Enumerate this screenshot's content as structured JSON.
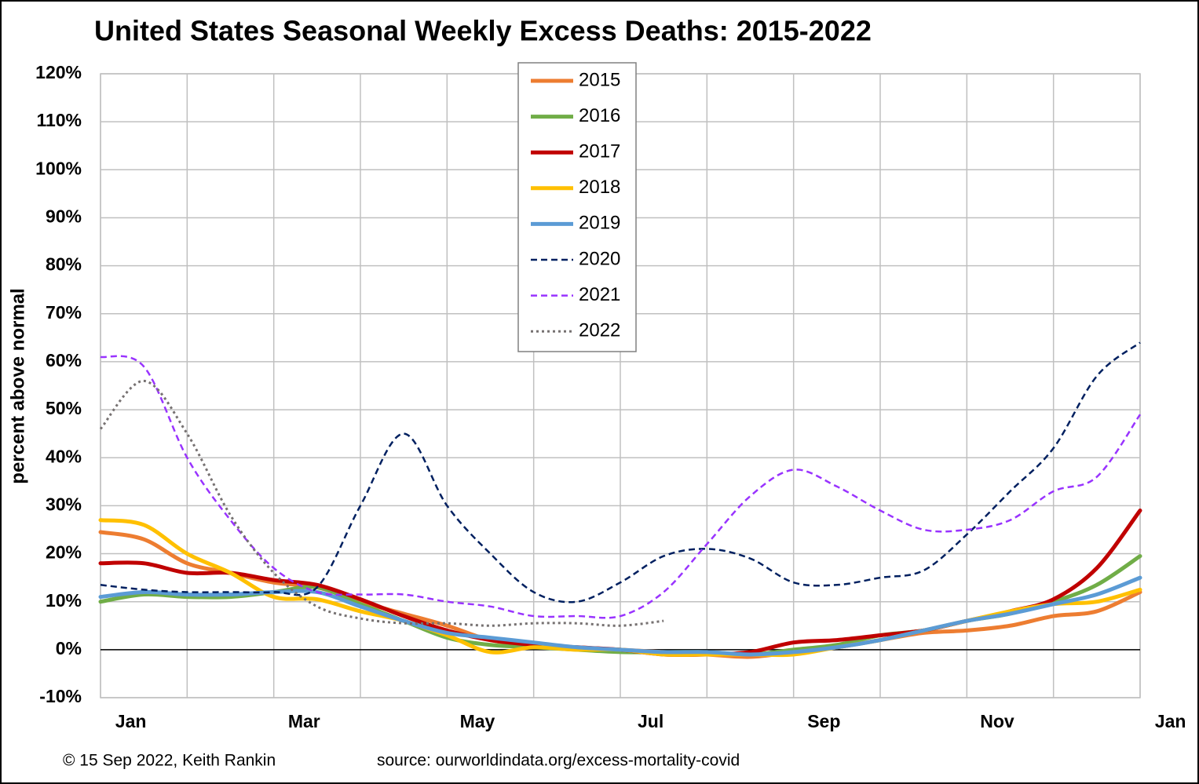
{
  "chart_data": {
    "type": "line",
    "title": "United States Seasonal Weekly Excess Deaths: 2015-2022",
    "y_label": "percent above normal",
    "credit": "© 15 Sep 2022, Keith Rankin",
    "source": "source: ourworldindata.org/excess-mortality-covid",
    "x": [
      0,
      0.5,
      1,
      1.5,
      2,
      2.5,
      3,
      3.5,
      4,
      4.5,
      5,
      5.5,
      6,
      6.5,
      7,
      7.5,
      8,
      8.5,
      9,
      9.5,
      10,
      10.5,
      11,
      11.5,
      12
    ],
    "xlim": [
      0,
      12
    ],
    "xticks": [
      {
        "value": 0,
        "label": "Jan"
      },
      {
        "value": 1,
        "label": null
      },
      {
        "value": 2,
        "label": "Mar"
      },
      {
        "value": 3,
        "label": null
      },
      {
        "value": 4,
        "label": "May"
      },
      {
        "value": 5,
        "label": null
      },
      {
        "value": 6,
        "label": "Jul"
      },
      {
        "value": 7,
        "label": null
      },
      {
        "value": 8,
        "label": "Sep"
      },
      {
        "value": 9,
        "label": null
      },
      {
        "value": 10,
        "label": "Nov"
      },
      {
        "value": 11,
        "label": null
      },
      {
        "value": 12,
        "label": "Jan"
      }
    ],
    "ylim": [
      -10,
      120
    ],
    "yticks": [
      {
        "value": -10,
        "label": "-10%"
      },
      {
        "value": 0,
        "label": "0%"
      },
      {
        "value": 10,
        "label": "10%"
      },
      {
        "value": 20,
        "label": "20%"
      },
      {
        "value": 30,
        "label": "30%"
      },
      {
        "value": 40,
        "label": "40%"
      },
      {
        "value": 50,
        "label": "50%"
      },
      {
        "value": 60,
        "label": "60%"
      },
      {
        "value": 70,
        "label": "70%"
      },
      {
        "value": 80,
        "label": "80%"
      },
      {
        "value": 90,
        "label": "90%"
      },
      {
        "value": 100,
        "label": "100%"
      },
      {
        "value": 110,
        "label": "110%"
      },
      {
        "value": 120,
        "label": "120%"
      }
    ],
    "grid": true,
    "legend": "top",
    "series": [
      {
        "name": "2015",
        "color": "#ed7d31",
        "style": "solid",
        "values": [
          24.5,
          23,
          18,
          16,
          14,
          13,
          10,
          7.5,
          5,
          2,
          1,
          0.5,
          0,
          -0.5,
          -1,
          -1.5,
          -0.5,
          0.5,
          2,
          3.5,
          4,
          5,
          7,
          8,
          12
        ]
      },
      {
        "name": "2016",
        "color": "#70ad47",
        "style": "solid",
        "values": [
          10,
          11.5,
          11,
          11,
          12,
          13,
          9.5,
          6,
          2.5,
          1,
          0.5,
          0,
          -0.5,
          -0.5,
          -0.5,
          -1,
          0,
          1,
          3,
          4,
          6,
          7.5,
          10,
          13.5,
          19.5
        ]
      },
      {
        "name": "2017",
        "color": "#c00000",
        "style": "solid",
        "values": [
          18,
          18,
          16,
          16,
          14.5,
          13.5,
          10.5,
          7,
          4,
          2,
          1,
          0.5,
          0,
          -1,
          -1,
          -0.5,
          1.5,
          2,
          3,
          4,
          6,
          8,
          10.5,
          17,
          29
        ]
      },
      {
        "name": "2018",
        "color": "#ffc000",
        "style": "solid",
        "values": [
          27,
          26,
          20,
          16,
          11,
          10.5,
          8,
          6,
          3,
          -0.5,
          0.5,
          0,
          0,
          -1,
          -1,
          -1,
          -1,
          0.5,
          2,
          4,
          6,
          8,
          9.5,
          10,
          12.5
        ]
      },
      {
        "name": "2019",
        "color": "#5b9bd5",
        "style": "solid",
        "values": [
          11,
          12,
          11.5,
          11.5,
          12,
          12,
          9,
          6,
          3.5,
          2.5,
          1.5,
          0.5,
          0,
          -0.5,
          -0.5,
          -1,
          -0.5,
          0.5,
          2,
          4,
          6,
          7.5,
          9.5,
          11.5,
          15
        ]
      },
      {
        "name": "2020",
        "color": "#002060",
        "style": "dashed",
        "values": [
          13.5,
          12.5,
          12,
          12,
          12,
          13,
          30,
          45,
          30,
          20,
          12,
          10,
          14,
          19.5,
          21,
          19,
          14,
          13.5,
          15,
          16.5,
          24,
          33,
          42,
          57,
          64
        ]
      },
      {
        "name": "2021",
        "color": "#9933ff",
        "style": "dashed",
        "values": [
          61,
          59,
          40,
          27,
          17,
          12,
          11.5,
          11.5,
          10,
          9,
          7,
          7,
          7,
          12,
          22,
          32,
          37.5,
          34,
          29,
          25,
          25,
          27,
          33,
          36,
          49
        ]
      },
      {
        "name": "2022",
        "color": "#767171",
        "style": "dotted",
        "values": [
          46,
          56,
          45,
          28,
          16,
          9,
          6.5,
          5.5,
          5.5,
          5,
          5.5,
          5.5,
          5,
          6,
          null,
          null,
          null,
          null,
          null,
          null,
          null,
          null,
          null,
          null,
          null
        ]
      }
    ]
  }
}
